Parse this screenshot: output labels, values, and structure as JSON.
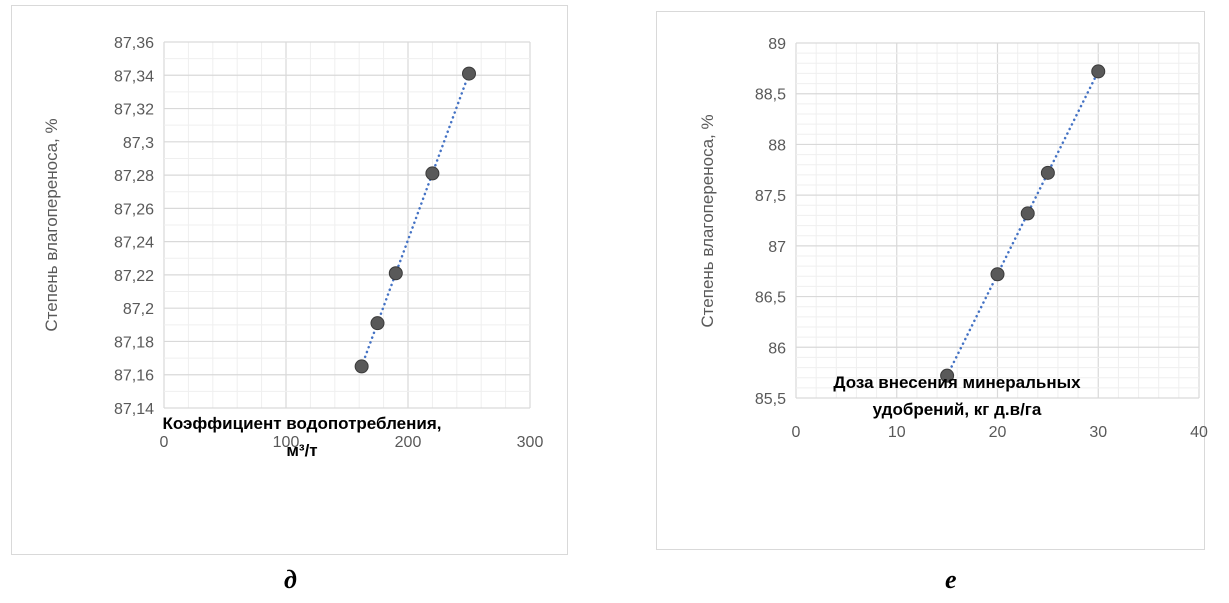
{
  "chart_data": [
    {
      "id": "d",
      "type": "scatter",
      "ylabel": "Степень влагопереноса, %",
      "xlabel_lines": [
        "Коэффициент водопотребления,",
        "м³/т"
      ],
      "xlim": [
        0,
        300
      ],
      "ylim": [
        87.14,
        87.36
      ],
      "x_ticks": [
        "0",
        "100",
        "200",
        "300"
      ],
      "y_ticks": [
        "87,14",
        "87,16",
        "87,18",
        "87,2",
        "87,22",
        "87,24",
        "87,26",
        "87,28",
        "87,3",
        "87,32",
        "87,34",
        "87,36"
      ],
      "series": [
        {
          "x": [
            162,
            175,
            190,
            220,
            250
          ],
          "y": [
            87.165,
            87.191,
            87.221,
            87.281,
            87.341
          ],
          "trendline": "linear"
        }
      ],
      "grid": "major and minor",
      "marker_color": "#595959",
      "trend_color": "#4472c4",
      "caption": "д"
    },
    {
      "id": "e",
      "type": "scatter",
      "ylabel": "Степень влагопереноса, %",
      "xlabel_lines": [
        "Доза внесения минеральных",
        "удобрений, кг д.в/га"
      ],
      "xlim": [
        0,
        40
      ],
      "ylim": [
        85.5,
        89
      ],
      "x_ticks": [
        "0",
        "10",
        "20",
        "30",
        "40"
      ],
      "y_ticks": [
        "85,5",
        "86",
        "86,5",
        "87",
        "87,5",
        "88",
        "88,5",
        "89"
      ],
      "series": [
        {
          "x": [
            15,
            20,
            23,
            25,
            30
          ],
          "y": [
            85.72,
            86.72,
            87.32,
            87.72,
            88.72
          ],
          "trendline": "linear"
        }
      ],
      "grid": "major and minor",
      "marker_color": "#595959",
      "trend_color": "#4472c4",
      "caption": "е"
    }
  ]
}
